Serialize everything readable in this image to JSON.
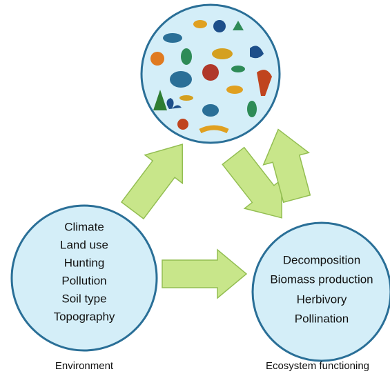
{
  "environment": {
    "label": "Environment",
    "items": [
      "Climate",
      "Land use",
      "Hunting",
      "Pollution",
      "Soil type",
      "Topography"
    ]
  },
  "ecosystem": {
    "label": "Ecosystem functioning",
    "items": [
      "Decomposition",
      "Biomass production",
      "Herbivory",
      "Pollination"
    ]
  }
}
